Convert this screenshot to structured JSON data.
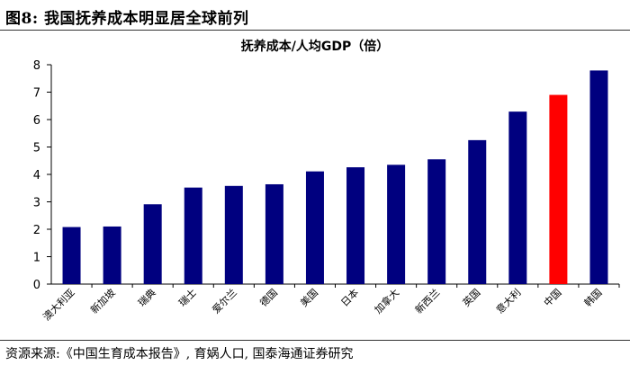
{
  "figure": {
    "title": "图8:  我国抚养成本明显居全球前列",
    "source": "资源来源:《中国生育成本报告》, 育娲人口, 国泰海通证券研究"
  },
  "chart_data": {
    "type": "bar",
    "title": "抚养成本/人均GDP（倍）",
    "xlabel": "",
    "ylabel": "",
    "ylim": [
      0,
      8
    ],
    "yticks": [
      0,
      1,
      2,
      3,
      4,
      5,
      6,
      7,
      8
    ],
    "grid": false,
    "legend": "none",
    "categories": [
      "澳大利亚",
      "新加坡",
      "瑞典",
      "瑞士",
      "爱尔兰",
      "德国",
      "美国",
      "日本",
      "加拿大",
      "新西兰",
      "英国",
      "意大利",
      "中国",
      "韩国"
    ],
    "values": [
      2.08,
      2.1,
      2.91,
      3.52,
      3.58,
      3.64,
      4.11,
      4.26,
      4.35,
      4.55,
      5.25,
      6.29,
      6.9,
      7.79
    ],
    "colors": {
      "default": "#00007f",
      "highlight": "#ff0000",
      "highlight_category": "中国"
    }
  }
}
